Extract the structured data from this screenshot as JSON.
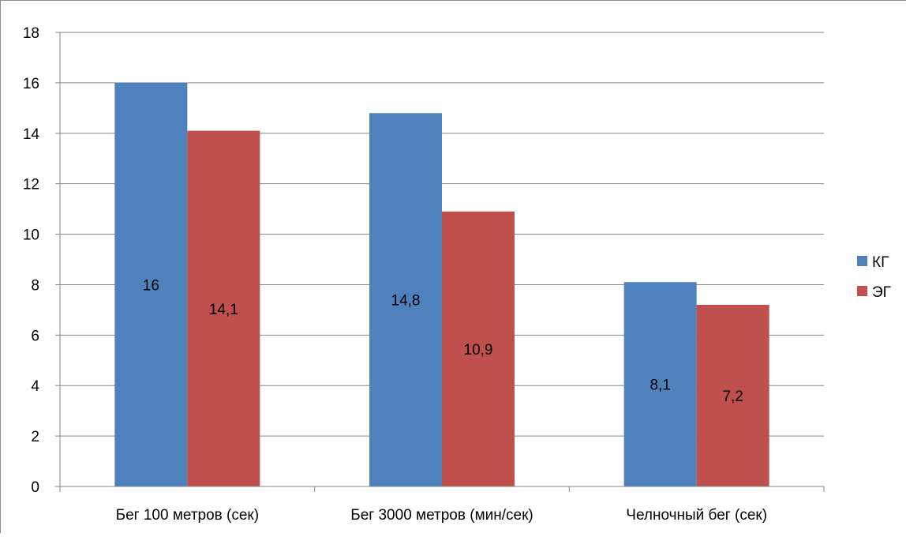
{
  "chart_data": {
    "type": "bar",
    "title": "",
    "xlabel": "",
    "ylabel": "",
    "categories": [
      "Бег 100 метров (сек)",
      "Бег 3000 метров (мин/сек)",
      "Челночный бег (сек)"
    ],
    "series": [
      {
        "name": "КГ",
        "color": "#4F81BD",
        "values": [
          16,
          14.8,
          8.1
        ],
        "labels": [
          "16",
          "14,8",
          "8,1"
        ]
      },
      {
        "name": "ЭГ",
        "color": "#C0504D",
        "values": [
          14.1,
          10.9,
          7.2
        ],
        "labels": [
          "14,1",
          "10,9",
          "7,2"
        ]
      }
    ],
    "ylim": [
      0,
      18
    ],
    "yticks": [
      0,
      2,
      4,
      6,
      8,
      10,
      12,
      14,
      16,
      18
    ],
    "grid": true,
    "legend_position": "right"
  }
}
